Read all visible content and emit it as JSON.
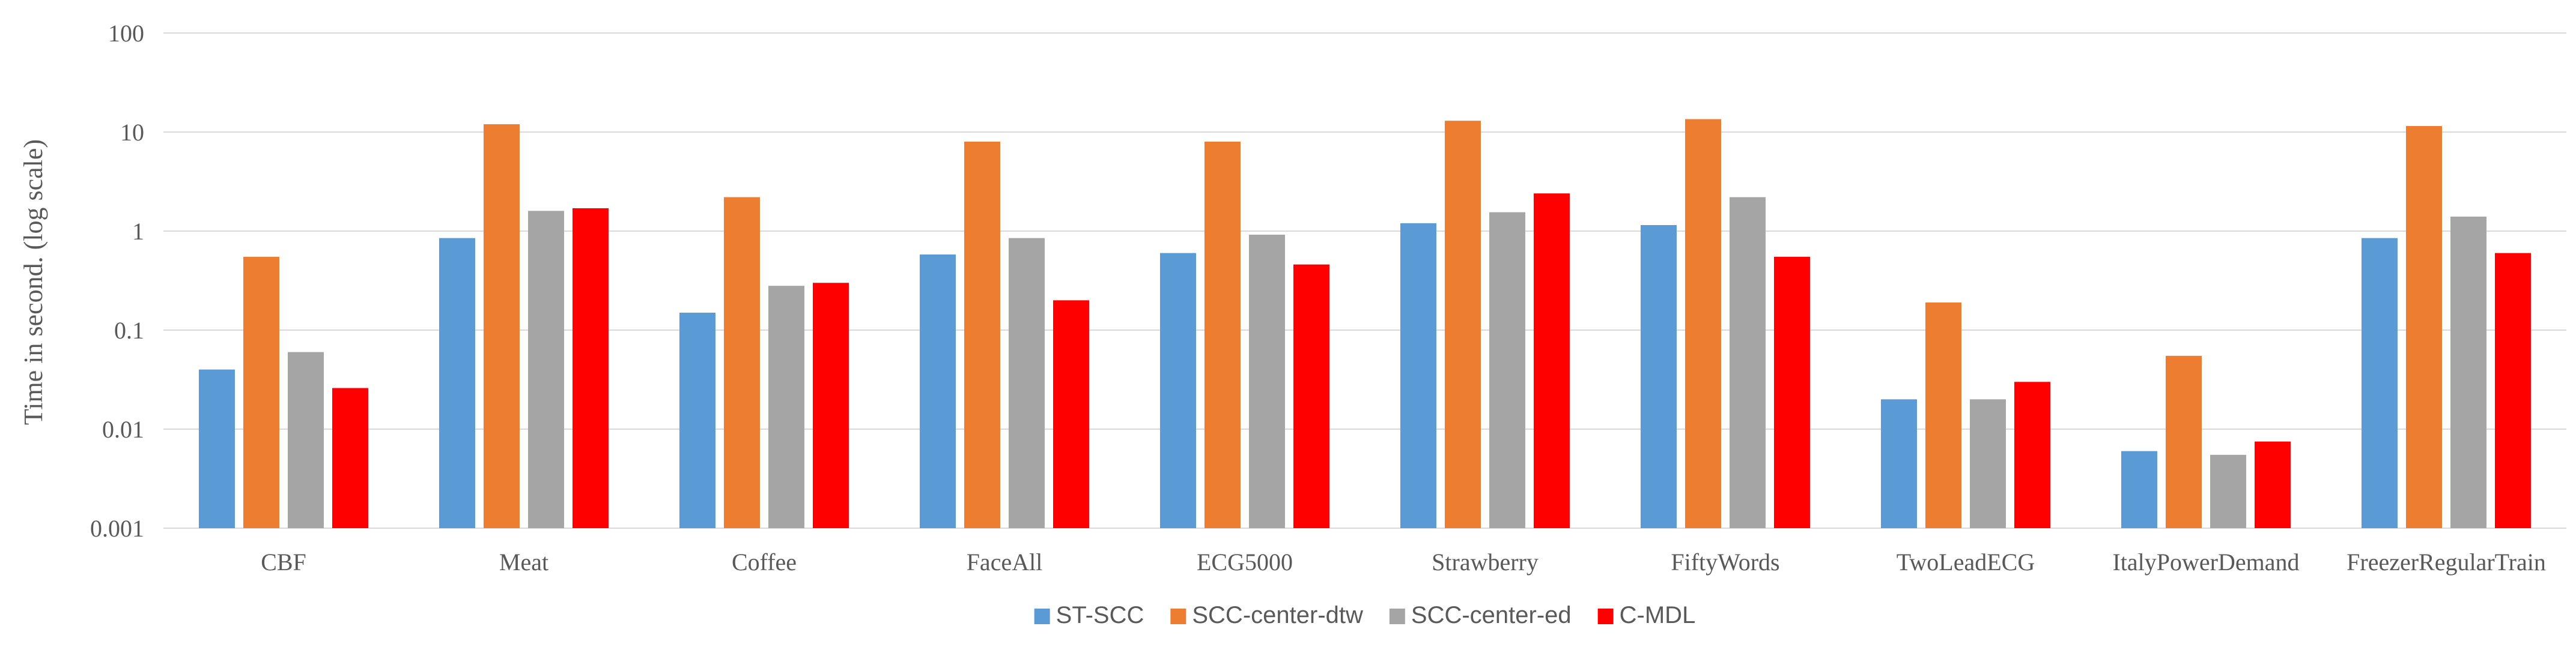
{
  "chart_data": {
    "type": "bar",
    "title": "",
    "xlabel": "",
    "ylabel": "Time  in second. (log scale)",
    "yscale": "log",
    "ylim": [
      0.001,
      100
    ],
    "yticks": [
      {
        "value": 0.001,
        "label": "0.001"
      },
      {
        "value": 0.01,
        "label": "0.01"
      },
      {
        "value": 0.1,
        "label": "0.1"
      },
      {
        "value": 1,
        "label": "1"
      },
      {
        "value": 10,
        "label": "10"
      },
      {
        "value": 100,
        "label": "100"
      }
    ],
    "grid": true,
    "legend_position": "bottom-center",
    "categories": [
      "CBF",
      "Meat",
      "Coffee",
      "FaceAll",
      "ECG5000",
      "Strawberry",
      "FiftyWords",
      "TwoLeadECG",
      "ItalyPowerDemand",
      "FreezerRegularTrain"
    ],
    "series": [
      {
        "name": "ST-SCC",
        "color": "#5b9bd5",
        "values": [
          0.04,
          0.85,
          0.15,
          0.58,
          0.6,
          1.2,
          1.15,
          0.02,
          0.006,
          0.85
        ]
      },
      {
        "name": "SCC-center-dtw",
        "color": "#ed7d31",
        "values": [
          0.55,
          12.0,
          2.2,
          8.0,
          8.0,
          13.0,
          13.5,
          0.19,
          0.055,
          11.5
        ]
      },
      {
        "name": "SCC-center-ed",
        "color": "#a5a5a5",
        "values": [
          0.06,
          1.6,
          0.28,
          0.85,
          0.92,
          1.55,
          2.2,
          0.02,
          0.0055,
          1.4
        ]
      },
      {
        "name": "C-MDL",
        "color": "#ff0000",
        "values": [
          0.026,
          1.7,
          0.3,
          0.2,
          0.46,
          2.4,
          0.55,
          0.03,
          0.0075,
          0.6
        ]
      }
    ]
  }
}
